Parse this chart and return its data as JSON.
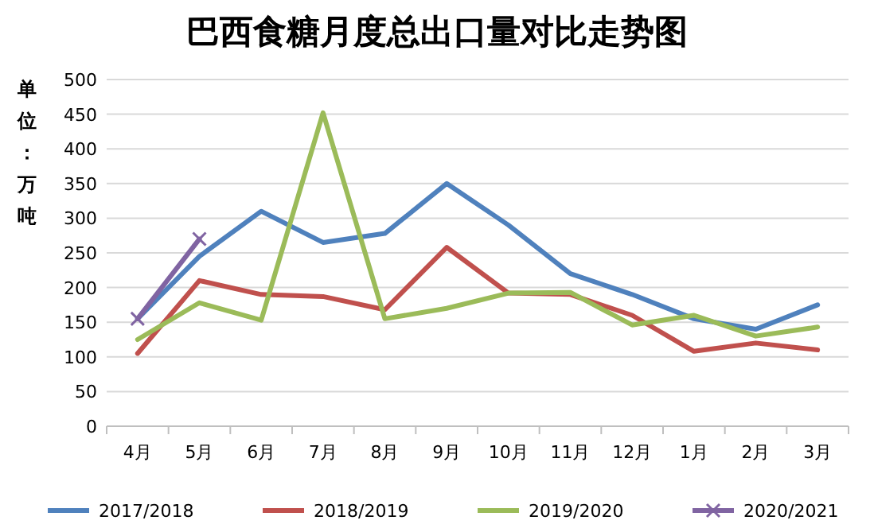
{
  "chart_data": {
    "type": "line",
    "title": "巴西食糖月度总出口量对比走势图",
    "ylabel": "单位：万吨",
    "categories": [
      "4月",
      "5月",
      "6月",
      "7月",
      "8月",
      "9月",
      "10月",
      "11月",
      "12月",
      "1月",
      "2月",
      "3月"
    ],
    "ylim": [
      0,
      500
    ],
    "yticks": [
      0,
      50,
      100,
      150,
      200,
      250,
      300,
      350,
      400,
      450,
      500
    ],
    "grid": "y",
    "legend": "bottom",
    "marker": "none",
    "line_style": "solid",
    "series": [
      {
        "name": "2017/2018",
        "color": "#4f81bd",
        "values": [
          155,
          245,
          310,
          265,
          278,
          350,
          290,
          220,
          190,
          155,
          140,
          175
        ]
      },
      {
        "name": "2018/2019",
        "color": "#c0504d",
        "values": [
          105,
          210,
          190,
          187,
          168,
          258,
          192,
          190,
          160,
          108,
          120,
          110
        ]
      },
      {
        "name": "2019/2020",
        "color": "#9bbb59",
        "values": [
          125,
          178,
          153,
          452,
          155,
          170,
          192,
          193,
          146,
          160,
          130,
          143
        ]
      },
      {
        "name": "2020/2021",
        "color": "#8064a2",
        "marker": "cross",
        "values": [
          155,
          270,
          null,
          null,
          null,
          null,
          null,
          null,
          null,
          null,
          null,
          null
        ]
      }
    ]
  }
}
